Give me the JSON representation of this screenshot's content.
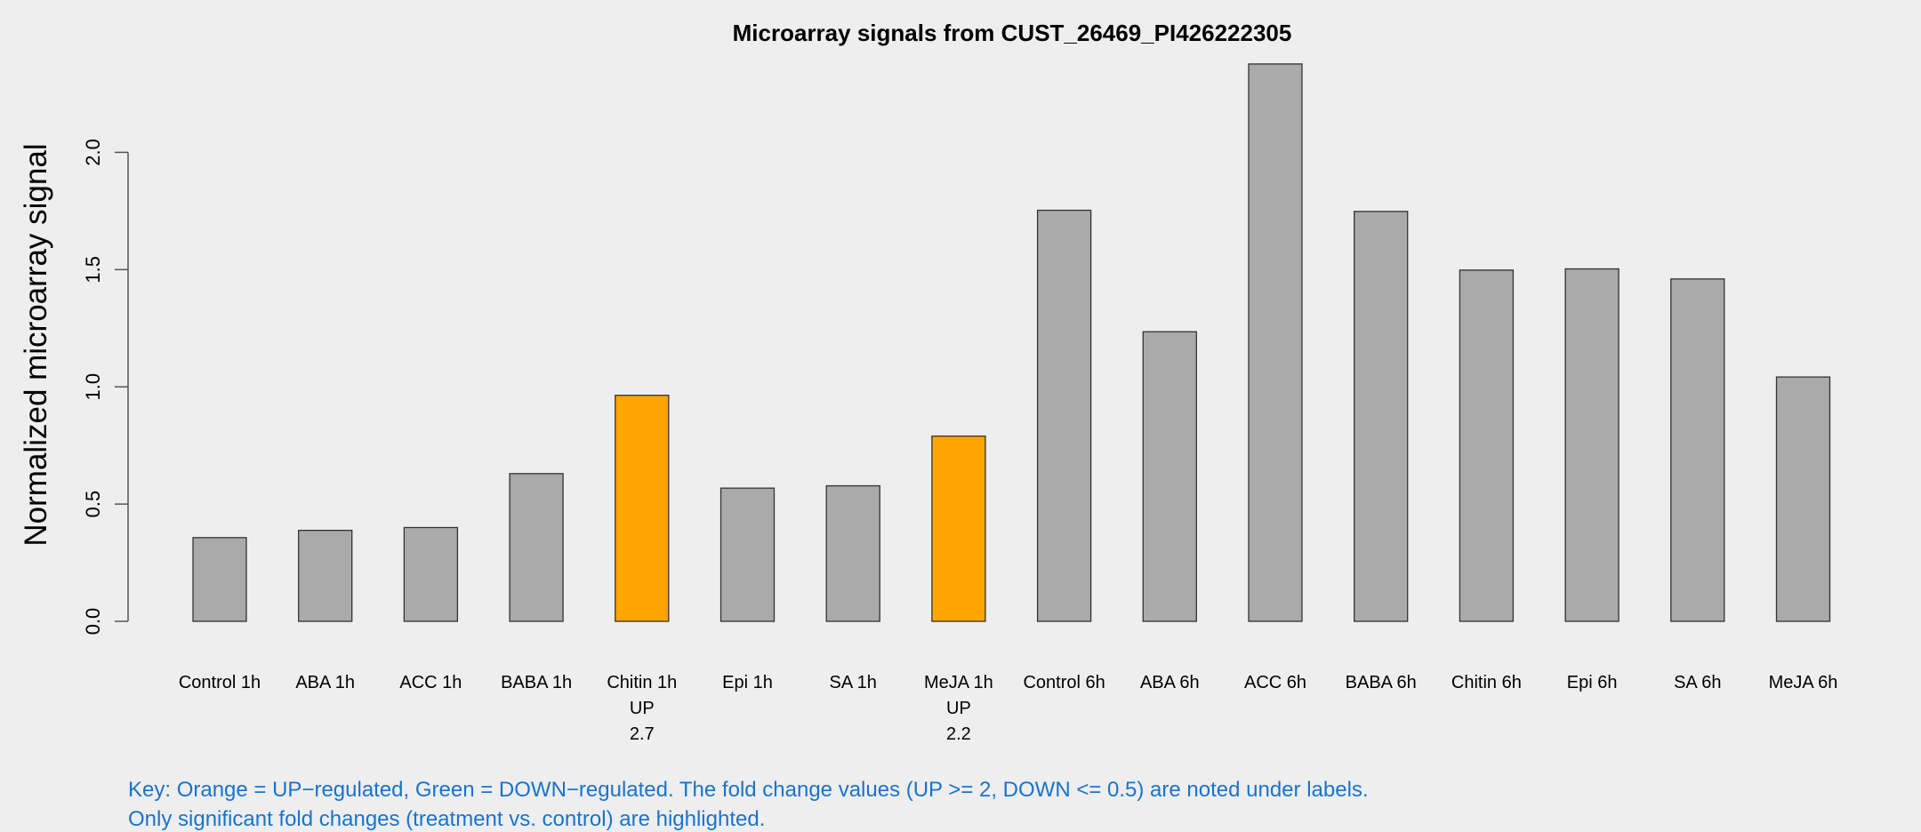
{
  "chart_data": {
    "type": "bar",
    "title": "Microarray signals from CUST_26469_PI426222305",
    "xlabel": "",
    "ylabel": "Normalized microarray signal",
    "ylim": [
      0,
      2.4
    ],
    "yticks": [
      "0.0",
      "0.5",
      "1.0",
      "1.5",
      "2.0"
    ],
    "ytick_values": [
      0,
      0.5,
      1.0,
      1.5,
      2.0
    ],
    "categories": [
      "Control 1h",
      "ABA 1h",
      "ACC 1h",
      "BABA 1h",
      "Chitin 1h",
      "Epi 1h",
      "SA 1h",
      "MeJA 1h",
      "Control 6h",
      "ABA 6h",
      "ACC 6h",
      "BABA 6h",
      "Chitin 6h",
      "Epi 6h",
      "SA 6h",
      "MeJA 6h"
    ],
    "values": [
      0.357,
      0.388,
      0.4,
      0.63,
      0.964,
      0.568,
      0.578,
      0.79,
      1.753,
      1.235,
      2.377,
      1.748,
      1.498,
      1.503,
      1.46,
      1.042
    ],
    "regulation": [
      "",
      "",
      "",
      "",
      "UP",
      "",
      "",
      "UP",
      "",
      "",
      "",
      "",
      "",
      "",
      "",
      ""
    ],
    "fold_change": [
      "",
      "",
      "",
      "",
      "2.7",
      "",
      "",
      "2.2",
      "",
      "",
      "",
      "",
      "",
      "",
      "",
      ""
    ],
    "colors": {
      "default": "#aaaaaa",
      "up": "#ffa500",
      "down": "#00a000",
      "border": "#333333",
      "key": "#1874cd",
      "background": "#eeeeee"
    },
    "grid": false
  },
  "key": {
    "line1": "Key: Orange = UP−regulated, Green = DOWN−regulated. The fold change values (UP >= 2, DOWN <= 0.5) are noted under labels.",
    "line2": "Only significant fold changes (treatment vs. control) are highlighted."
  }
}
